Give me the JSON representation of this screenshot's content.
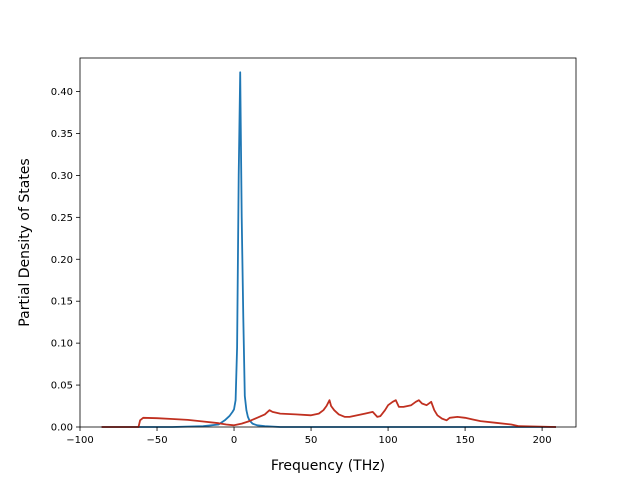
{
  "chart_data": {
    "type": "line",
    "title": "",
    "xlabel": "Frequency (THz)",
    "ylabel": "Partial Density of States",
    "xlim": [
      -100,
      222
    ],
    "ylim": [
      0,
      0.44
    ],
    "xticks": [
      -100,
      -50,
      0,
      50,
      100,
      150,
      200
    ],
    "yticks": [
      0.0,
      0.05,
      0.1,
      0.15,
      0.2,
      0.25,
      0.3,
      0.35,
      0.4
    ],
    "xtick_labels": [
      "−100",
      "−50",
      "0",
      "50",
      "100",
      "150",
      "200"
    ],
    "ytick_labels": [
      "0.00",
      "0.05",
      "0.10",
      "0.15",
      "0.20",
      "0.25",
      "0.30",
      "0.35",
      "0.40"
    ],
    "grid": false,
    "legend": "none",
    "series": [
      {
        "color": "#1f77b4",
        "x": [
          -86,
          -60,
          -40,
          -20,
          -10,
          -6,
          -3,
          -1,
          0,
          1,
          2,
          3,
          4,
          5,
          6,
          7,
          8,
          9,
          10,
          12,
          15,
          20,
          30,
          40,
          60,
          100,
          150,
          209
        ],
        "y": [
          0,
          0,
          0,
          0.001,
          0.003,
          0.008,
          0.013,
          0.018,
          0.021,
          0.032,
          0.095,
          0.3,
          0.423,
          0.25,
          0.13,
          0.037,
          0.02,
          0.012,
          0.008,
          0.004,
          0.002,
          0.001,
          0,
          0,
          0,
          0,
          0,
          0
        ]
      },
      {
        "color": "#c03020",
        "x": [
          -86,
          -62,
          -61,
          -59,
          -50,
          -40,
          -30,
          -20,
          -10,
          -5,
          0,
          5,
          10,
          15,
          20,
          23,
          25,
          30,
          40,
          50,
          55,
          58,
          60,
          62,
          63,
          65,
          68,
          72,
          75,
          80,
          85,
          90,
          93,
          95,
          98,
          100,
          103,
          105,
          107,
          110,
          115,
          118,
          120,
          122,
          125,
          128,
          130,
          132,
          135,
          138,
          140,
          145,
          150,
          155,
          160,
          170,
          180,
          185,
          209
        ],
        "y": [
          0,
          0,
          0.008,
          0.011,
          0.0105,
          0.0095,
          0.0085,
          0.0065,
          0.0045,
          0.003,
          0.002,
          0.004,
          0.007,
          0.011,
          0.015,
          0.02,
          0.018,
          0.016,
          0.015,
          0.014,
          0.016,
          0.02,
          0.025,
          0.032,
          0.025,
          0.02,
          0.015,
          0.012,
          0.012,
          0.014,
          0.016,
          0.018,
          0.012,
          0.013,
          0.02,
          0.026,
          0.03,
          0.032,
          0.024,
          0.024,
          0.026,
          0.03,
          0.032,
          0.028,
          0.026,
          0.03,
          0.02,
          0.014,
          0.01,
          0.008,
          0.011,
          0.012,
          0.011,
          0.009,
          0.007,
          0.005,
          0.003,
          0.001,
          0
        ]
      }
    ]
  }
}
